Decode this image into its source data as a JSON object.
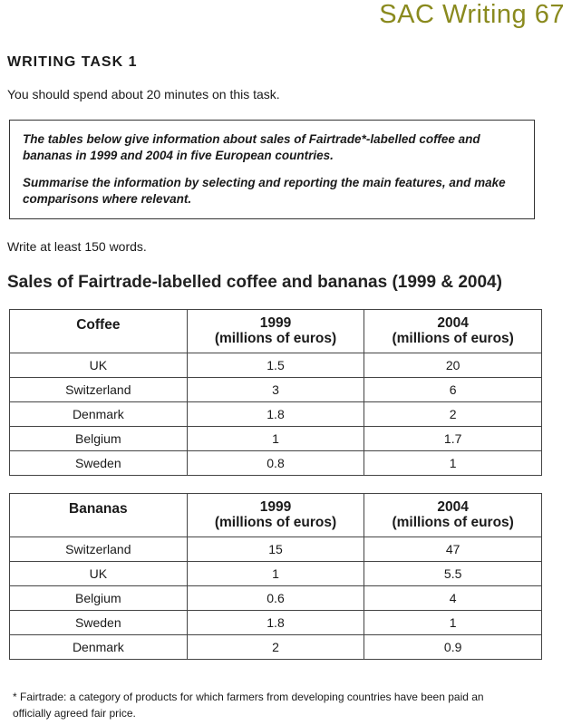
{
  "brand": "SAC Writing 67",
  "task_heading": "WRITING TASK 1",
  "time_note": "You should spend about 20 minutes on this task.",
  "prompt": {
    "line1": "The tables below give information about sales of Fairtrade*-labelled coffee and bananas in 1999 and 2004 in five European countries.",
    "line2": "Summarise the information by selecting and reporting the main features, and make comparisons where relevant."
  },
  "words_note": "Write at least 150 words.",
  "table_title": "Sales of Fairtrade-labelled coffee and bananas (1999 & 2004)",
  "coffee": {
    "headers": [
      "Coffee",
      "1999",
      "(millions of euros)",
      "2004",
      "(millions of euros)"
    ],
    "rows": [
      [
        "UK",
        "1.5",
        "20"
      ],
      [
        "Switzerland",
        "3",
        "6"
      ],
      [
        "Denmark",
        "1.8",
        "2"
      ],
      [
        "Belgium",
        "1",
        "1.7"
      ],
      [
        "Sweden",
        "0.8",
        "1"
      ]
    ]
  },
  "bananas": {
    "headers": [
      "Bananas",
      "1999",
      "(millions of euros)",
      "2004",
      "(millions of euros)"
    ],
    "rows": [
      [
        "Switzerland",
        "15",
        "47"
      ],
      [
        "UK",
        "1",
        "5.5"
      ],
      [
        "Belgium",
        "0.6",
        "4"
      ],
      [
        "Sweden",
        "1.8",
        "1"
      ],
      [
        "Denmark",
        "2",
        "0.9"
      ]
    ]
  },
  "footnote": "* Fairtrade: a category of products for which farmers from developing countries have been paid an officially agreed fair price."
}
